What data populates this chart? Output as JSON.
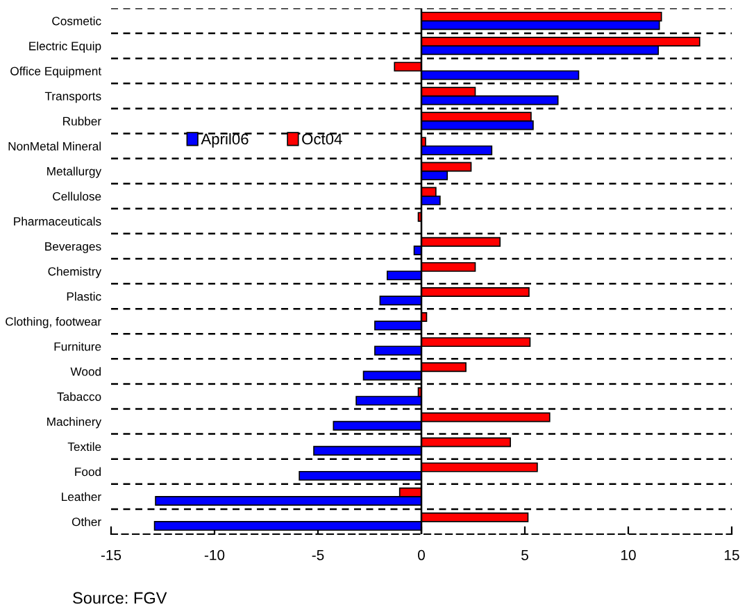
{
  "chart_data": {
    "type": "bar",
    "orientation": "horizontal",
    "categories": [
      "Cosmetic",
      "Electric Equip",
      "Office Equipment",
      "Transports",
      "Rubber",
      "NonMetal Mineral",
      "Metallurgy",
      "Cellulose",
      "Pharmaceuticals",
      "Beverages",
      "Chemistry",
      "Plastic",
      "Clothing, footwear",
      "Furniture",
      "Wood",
      "Tabacco",
      "Machinery",
      "Textile",
      "Food",
      "Leather",
      "Other"
    ],
    "series": [
      {
        "name": "April06",
        "color": "#0000ff",
        "values": [
          11.5,
          11.45,
          7.6,
          6.6,
          5.4,
          3.4,
          1.25,
          0.9,
          null,
          -0.35,
          -1.65,
          -2.0,
          -2.25,
          -2.25,
          -2.8,
          -3.15,
          -4.25,
          -5.2,
          -5.9,
          -12.85,
          -12.9
        ]
      },
      {
        "name": "Oct04",
        "color": "#ff0000",
        "values": [
          11.6,
          13.45,
          -1.3,
          2.6,
          5.3,
          0.2,
          2.4,
          0.7,
          -0.15,
          3.8,
          2.6,
          5.2,
          0.25,
          5.25,
          2.15,
          -0.15,
          6.2,
          4.3,
          5.6,
          -1.05,
          5.15
        ]
      }
    ],
    "xlim": [
      -15,
      15
    ],
    "xticks": [
      -15,
      -10,
      -5,
      0,
      5,
      10,
      15
    ],
    "grid": "y",
    "legend": "top left",
    "annotations": [
      "Source: FGV"
    ]
  }
}
